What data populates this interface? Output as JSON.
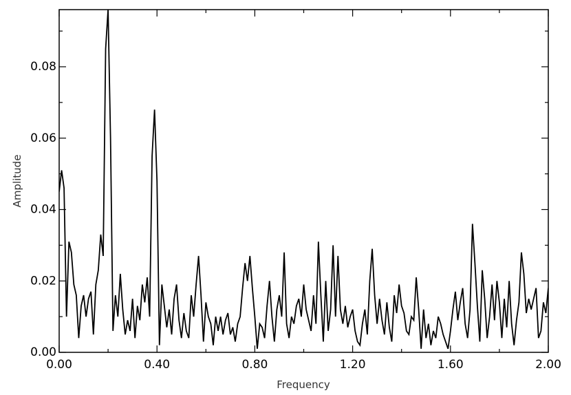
{
  "chart_data": {
    "type": "line",
    "x_label": "Frequency",
    "y_label": "Amplitude",
    "color": "#000000",
    "xlim": [
      0,
      2.0
    ],
    "ylim": [
      0,
      0.096
    ],
    "xticks": [
      {
        "value": 0,
        "label": "0.00"
      },
      {
        "value": 0.4,
        "label": "0.40"
      },
      {
        "value": 0.8,
        "label": "0.80"
      },
      {
        "value": 1.2,
        "label": "1.20"
      },
      {
        "value": 1.6,
        "label": "1.60"
      },
      {
        "value": 2.0,
        "label": "2.00"
      }
    ],
    "xminorticks": [
      0.2,
      0.6,
      1.0,
      1.4,
      1.8
    ],
    "yticks": [
      {
        "value": 0,
        "label": "0.00"
      },
      0.02,
      0.04,
      0.06,
      0.08
    ],
    "yminorticks": [
      0.01,
      0.03,
      0.05,
      0.07,
      0.09
    ],
    "x": [
      0,
      0.01,
      0.02,
      0.03,
      0.04,
      0.05,
      0.06,
      0.07,
      0.08,
      0.09,
      0.1,
      0.11,
      0.12,
      0.13,
      0.14,
      0.15,
      0.16,
      0.17,
      0.18,
      0.19,
      0.2,
      0.21,
      0.22,
      0.23,
      0.24,
      0.25,
      0.26,
      0.27,
      0.28,
      0.29,
      0.3,
      0.31,
      0.32,
      0.33,
      0.34,
      0.35,
      0.36,
      0.37,
      0.38,
      0.39,
      0.4,
      0.41,
      0.42,
      0.43,
      0.44,
      0.45,
      0.46,
      0.47,
      0.48,
      0.49,
      0.5,
      0.51,
      0.52,
      0.53,
      0.54,
      0.55,
      0.56,
      0.57,
      0.58,
      0.59,
      0.6,
      0.61,
      0.62,
      0.63,
      0.64,
      0.65,
      0.66,
      0.67,
      0.68,
      0.69,
      0.7,
      0.71,
      0.72,
      0.73,
      0.74,
      0.75,
      0.76,
      0.77,
      0.78,
      0.79,
      0.8,
      0.81,
      0.82,
      0.83,
      0.84,
      0.85,
      0.86,
      0.87,
      0.88,
      0.89,
      0.9,
      0.91,
      0.92,
      0.93,
      0.94,
      0.95,
      0.96,
      0.97,
      0.98,
      0.99,
      1.0,
      1.01,
      1.02,
      1.03,
      1.04,
      1.05,
      1.06,
      1.07,
      1.08,
      1.09,
      1.1,
      1.11,
      1.12,
      1.13,
      1.14,
      1.15,
      1.16,
      1.17,
      1.18,
      1.19,
      1.2,
      1.21,
      1.22,
      1.23,
      1.24,
      1.25,
      1.26,
      1.27,
      1.28,
      1.29,
      1.3,
      1.31,
      1.32,
      1.33,
      1.34,
      1.35,
      1.36,
      1.37,
      1.38,
      1.39,
      1.4,
      1.41,
      1.42,
      1.43,
      1.44,
      1.45,
      1.46,
      1.47,
      1.48,
      1.49,
      1.5,
      1.51,
      1.52,
      1.53,
      1.54,
      1.55,
      1.56,
      1.57,
      1.58,
      1.59,
      1.6,
      1.61,
      1.62,
      1.63,
      1.64,
      1.65,
      1.66,
      1.67,
      1.68,
      1.69,
      1.7,
      1.71,
      1.72,
      1.73,
      1.74,
      1.75,
      1.76,
      1.77,
      1.78,
      1.79,
      1.8,
      1.81,
      1.82,
      1.83,
      1.84,
      1.85,
      1.86,
      1.87,
      1.88,
      1.89,
      1.9,
      1.91,
      1.92,
      1.93,
      1.94,
      1.95,
      1.96,
      1.97,
      1.98,
      1.99,
      2.0
    ],
    "values": [
      0.045,
      0.051,
      0.046,
      0.01,
      0.031,
      0.028,
      0.019,
      0.016,
      0.004,
      0.013,
      0.016,
      0.01,
      0.015,
      0.017,
      0.005,
      0.019,
      0.023,
      0.033,
      0.027,
      0.085,
      0.096,
      0.06,
      0.006,
      0.016,
      0.01,
      0.022,
      0.012,
      0.005,
      0.009,
      0.006,
      0.015,
      0.004,
      0.013,
      0.009,
      0.019,
      0.014,
      0.021,
      0.01,
      0.055,
      0.068,
      0.048,
      0.002,
      0.019,
      0.013,
      0.007,
      0.012,
      0.005,
      0.015,
      0.019,
      0.009,
      0.004,
      0.011,
      0.006,
      0.004,
      0.016,
      0.01,
      0.019,
      0.027,
      0.016,
      0.003,
      0.014,
      0.01,
      0.008,
      0.002,
      0.01,
      0.006,
      0.01,
      0.005,
      0.009,
      0.011,
      0.005,
      0.007,
      0.003,
      0.008,
      0.01,
      0.018,
      0.025,
      0.02,
      0.027,
      0.018,
      0.01,
      0.001,
      0.008,
      0.007,
      0.004,
      0.013,
      0.02,
      0.01,
      0.003,
      0.012,
      0.016,
      0.01,
      0.028,
      0.008,
      0.004,
      0.01,
      0.008,
      0.013,
      0.015,
      0.01,
      0.019,
      0.012,
      0.009,
      0.006,
      0.016,
      0.008,
      0.031,
      0.016,
      0.003,
      0.02,
      0.006,
      0.012,
      0.03,
      0.01,
      0.027,
      0.012,
      0.008,
      0.013,
      0.007,
      0.01,
      0.012,
      0.006,
      0.003,
      0.002,
      0.008,
      0.012,
      0.005,
      0.02,
      0.029,
      0.016,
      0.008,
      0.015,
      0.009,
      0.005,
      0.014,
      0.007,
      0.003,
      0.016,
      0.011,
      0.019,
      0.013,
      0.011,
      0.006,
      0.005,
      0.01,
      0.009,
      0.021,
      0.012,
      0.001,
      0.012,
      0.004,
      0.008,
      0.002,
      0.006,
      0.004,
      0.01,
      0.008,
      0.005,
      0.003,
      0.001,
      0.006,
      0.012,
      0.017,
      0.009,
      0.014,
      0.018,
      0.008,
      0.004,
      0.012,
      0.036,
      0.025,
      0.013,
      0.003,
      0.023,
      0.015,
      0.004,
      0.01,
      0.019,
      0.009,
      0.02,
      0.014,
      0.004,
      0.015,
      0.007,
      0.02,
      0.008,
      0.002,
      0.009,
      0.014,
      0.028,
      0.022,
      0.011,
      0.015,
      0.012,
      0.015,
      0.018,
      0.004,
      0.006,
      0.014,
      0.011,
      0.018
    ]
  }
}
